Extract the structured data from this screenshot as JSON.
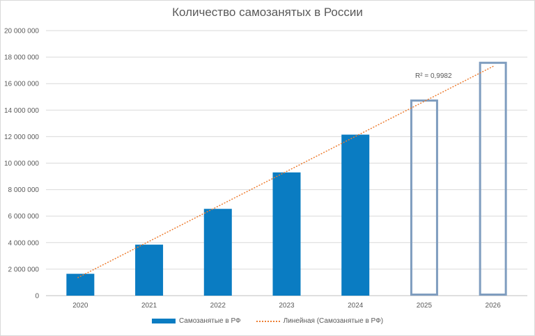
{
  "chart_data": {
    "type": "bar",
    "title": "Количество самозанятых в России",
    "categories": [
      "2020",
      "2021",
      "2022",
      "2023",
      "2024",
      "2025",
      "2026"
    ],
    "series": [
      {
        "name": "Самозанятые в РФ",
        "values": [
          1650000,
          3850000,
          6550000,
          9300000,
          12150000,
          14800000,
          17650000
        ],
        "style": [
          "filled",
          "filled",
          "filled",
          "filled",
          "filled",
          "outline",
          "outline"
        ]
      }
    ],
    "trendline": {
      "name": "Линейная (Самозанятые в РФ)",
      "kind": "linear",
      "r2_label": "R² = 0,9982",
      "start": {
        "x": "2020",
        "y": 1350000
      },
      "end": {
        "x": "2026",
        "y": 17350000
      }
    },
    "ylim": [
      0,
      20000000
    ],
    "yticks": [
      "0",
      "2 000 000",
      "4 000 000",
      "6 000 000",
      "8 000 000",
      "10 000 000",
      "12 000 000",
      "14 000 000",
      "16 000 000",
      "18 000 000",
      "20 000 000"
    ],
    "ytick_values": [
      0,
      2000000,
      4000000,
      6000000,
      8000000,
      10000000,
      12000000,
      14000000,
      16000000,
      18000000,
      20000000
    ],
    "grid": true,
    "legend_position": "bottom",
    "colors": {
      "bar": "#0a7cc2",
      "outline": "#7f9dbf",
      "trend": "#ed7d31",
      "grid": "#d9d9d9",
      "text": "#595959"
    }
  }
}
